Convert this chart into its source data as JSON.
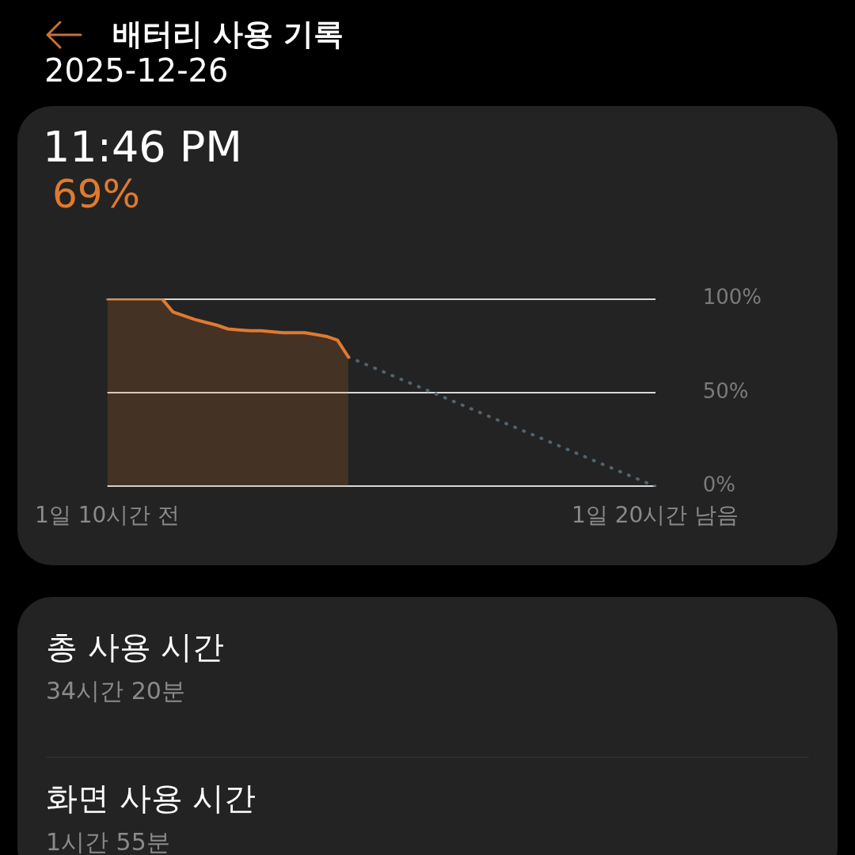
{
  "chart_data": {
    "type": "area",
    "title": "배터리 사용 기록",
    "subtitle": "2025-12-26",
    "annotations": [
      "11:46 PM",
      "69%",
      "총 사용 시간",
      "34시간 20분",
      "화면 사용 시간",
      "1시간 55분"
    ],
    "categories": [
      "1일 10시간 전",
      null,
      null,
      null,
      null,
      null,
      null,
      null,
      null,
      null,
      null,
      null,
      null,
      null,
      null,
      null,
      null,
      null,
      null,
      null,
      null,
      null,
      null,
      null,
      null,
      null,
      null,
      null,
      null,
      null,
      null,
      null,
      null,
      null,
      null,
      null,
      null,
      null,
      null,
      null,
      null,
      null,
      null,
      null,
      null,
      null,
      null,
      null,
      null,
      null,
      "1일 20시간 남음"
    ],
    "series": [
      {
        "color": "#e07a30",
        "values": [
          100,
          100,
          100,
          100,
          100,
          100,
          93,
          91,
          89,
          87.5,
          86,
          84,
          83.5,
          83,
          83,
          82.5,
          82,
          82,
          82,
          81,
          80,
          78,
          69,
          null,
          null,
          null,
          null,
          null,
          null,
          null,
          null,
          null,
          null,
          null,
          null,
          null,
          null,
          null,
          null,
          null,
          null,
          null,
          null,
          null,
          null,
          null,
          null,
          null,
          null,
          null,
          null
        ]
      },
      {
        "type": "line",
        "color": "#4f6470",
        "line_style": "dotted",
        "values": [
          null,
          null,
          null,
          null,
          null,
          null,
          null,
          null,
          null,
          null,
          null,
          null,
          null,
          null,
          null,
          null,
          null,
          null,
          null,
          null,
          null,
          null,
          69,
          null,
          null,
          null,
          null,
          null,
          null,
          null,
          null,
          null,
          null,
          null,
          null,
          null,
          null,
          null,
          null,
          null,
          null,
          null,
          null,
          null,
          null,
          null,
          null,
          null,
          null,
          null,
          0
        ]
      }
    ],
    "ylim": [
      0,
      100
    ],
    "yticks": [
      {
        "value": 0,
        "label": "0%"
      },
      {
        "value": 50,
        "label": "50%"
      },
      {
        "value": 100,
        "label": "100%"
      }
    ],
    "grid": "y",
    "legend": false,
    "marker": "none"
  }
}
